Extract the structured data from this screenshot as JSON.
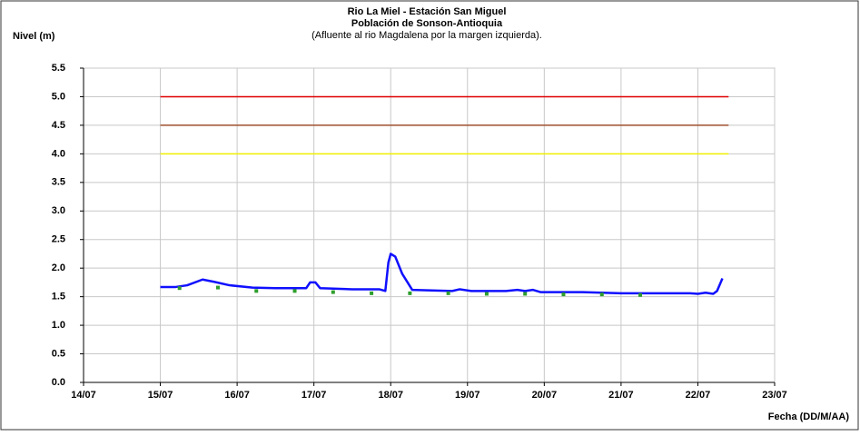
{
  "chart_data": {
    "type": "line",
    "title": "Rio La Miel  - Estación San Miguel",
    "subtitle": "Población de Sonson-Antioquia",
    "annotation": "(Afluente al rio Magdalena por la margen izquierda).",
    "y_label": "Nivel (m)",
    "x_label": "Fecha (DD/M/AA)",
    "xlim": [
      14,
      23
    ],
    "xticks": [
      {
        "value": 14,
        "label": "14/07"
      },
      {
        "value": 15,
        "label": "15/07"
      },
      {
        "value": 16,
        "label": "16/07"
      },
      {
        "value": 17,
        "label": "17/07"
      },
      {
        "value": 18,
        "label": "18/07"
      },
      {
        "value": 19,
        "label": "19/07"
      },
      {
        "value": 20,
        "label": "20/07"
      },
      {
        "value": 21,
        "label": "21/07"
      },
      {
        "value": 22,
        "label": "22/07"
      },
      {
        "value": 23,
        "label": "23/07"
      }
    ],
    "ylim": [
      0,
      5.5
    ],
    "yticks": [
      {
        "value": 0,
        "label": "0.0"
      },
      0.5,
      {
        "value": 1,
        "label": "1.0"
      },
      1.5,
      {
        "value": 2,
        "label": "2.0"
      },
      2.5,
      {
        "value": 3,
        "label": "3.0"
      },
      3.5,
      {
        "value": 4,
        "label": "4.0"
      },
      4.5,
      {
        "value": 5,
        "label": "5.0"
      },
      5.5
    ],
    "grid": true,
    "series": [
      {
        "color": "#e00000",
        "mode": "line",
        "width": 1.5,
        "x": [
          15,
          22.4
        ],
        "values": [
          5.0,
          5.0
        ]
      },
      {
        "color": "#a0522d",
        "mode": "line",
        "width": 1.5,
        "x": [
          15,
          22.4
        ],
        "values": [
          4.5,
          4.5
        ]
      },
      {
        "color": "#f0f000",
        "mode": "line",
        "width": 1.5,
        "x": [
          15,
          22.4
        ],
        "values": [
          4.0,
          4.0
        ]
      },
      {
        "color": "#1010ff",
        "mode": "line",
        "width": 2.5,
        "x": [
          15.0,
          15.2,
          15.35,
          15.55,
          15.7,
          15.9,
          16.2,
          16.5,
          16.9,
          16.95,
          17.02,
          17.08,
          17.5,
          17.85,
          17.93,
          17.97,
          18.0,
          18.06,
          18.15,
          18.28,
          18.8,
          18.9,
          19.05,
          19.5,
          19.65,
          19.75,
          19.85,
          19.95,
          20.5,
          21.0,
          21.9,
          22.0,
          22.1,
          22.2,
          22.25,
          22.32
        ],
        "values": [
          1.67,
          1.67,
          1.7,
          1.8,
          1.76,
          1.7,
          1.66,
          1.65,
          1.65,
          1.75,
          1.75,
          1.65,
          1.63,
          1.63,
          1.6,
          2.1,
          2.25,
          2.2,
          1.9,
          1.62,
          1.6,
          1.63,
          1.6,
          1.6,
          1.62,
          1.6,
          1.62,
          1.58,
          1.58,
          1.56,
          1.56,
          1.55,
          1.57,
          1.55,
          1.6,
          1.82
        ]
      },
      {
        "color": "#2e9e2e",
        "mode": "markers",
        "x": [
          15.25,
          15.75,
          16.25,
          16.75,
          17.25,
          17.75,
          18.25,
          18.75,
          19.25,
          19.75,
          20.25,
          20.75,
          21.25
        ],
        "values": [
          1.65,
          1.66,
          1.6,
          1.6,
          1.58,
          1.56,
          1.56,
          1.56,
          1.55,
          1.55,
          1.54,
          1.54,
          1.53
        ]
      }
    ]
  }
}
